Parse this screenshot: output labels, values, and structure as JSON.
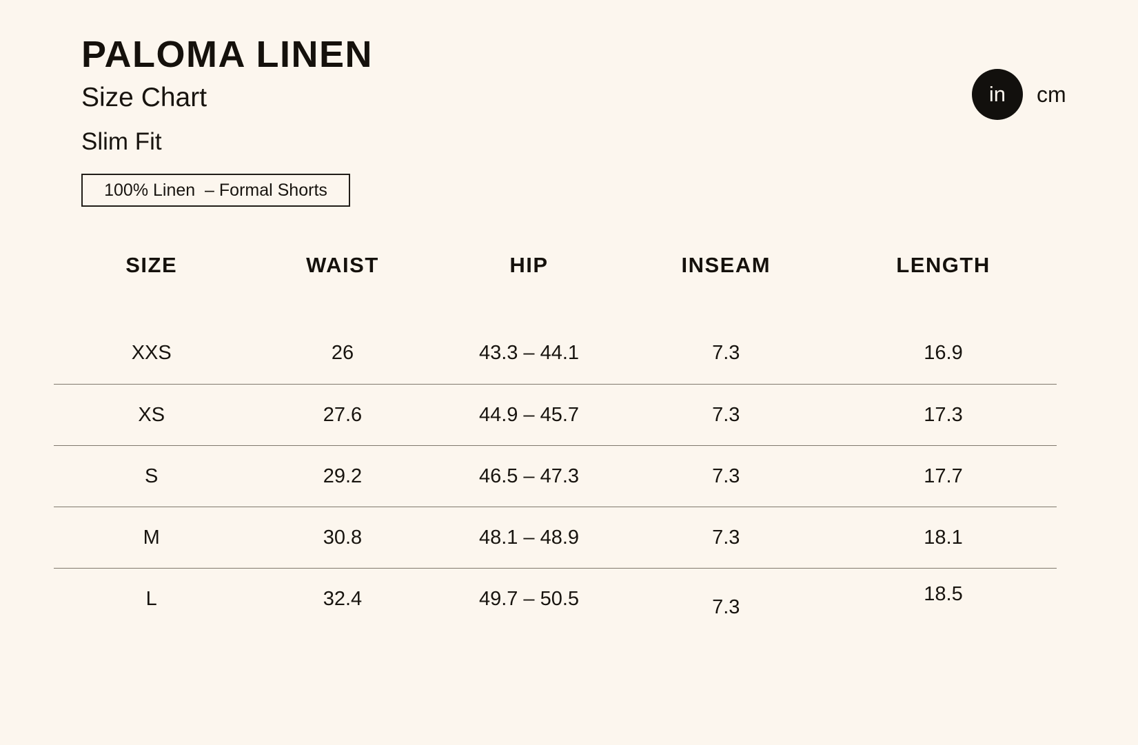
{
  "page": {
    "background": "#FCF6EE",
    "text_color": "#18140F",
    "divider_color": "#7F786C",
    "accent_black": "#12100D"
  },
  "header": {
    "title": "PALOMA LINEN",
    "subtitle": "Size Chart",
    "fit": "Slim Fit",
    "material_badge": "100% Linen  – Formal Shorts"
  },
  "unit_toggle": {
    "selected": "in",
    "options": [
      {
        "label": "in",
        "selected": true
      },
      {
        "label": "cm",
        "selected": false
      }
    ]
  },
  "table": {
    "columns": [
      "SIZE",
      "WAIST",
      "HIP",
      "INSEAM",
      "LENGTH"
    ],
    "rows": [
      {
        "size": "XXS",
        "waist": "26",
        "hip": "43.3 – 44.1",
        "inseam": "7.3",
        "length": "16.9"
      },
      {
        "size": "XS",
        "waist": "27.6",
        "hip": "44.9 – 45.7",
        "inseam": "7.3",
        "length": "17.3"
      },
      {
        "size": "S",
        "waist": "29.2",
        "hip": "46.5 – 47.3",
        "inseam": "7.3",
        "length": "17.7"
      },
      {
        "size": "M",
        "waist": "30.8",
        "hip": "48.1 – 48.9",
        "inseam": "7.3",
        "length": "18.1"
      },
      {
        "size": "L",
        "waist": "32.4",
        "hip": "49.7 – 50.5",
        "inseam": "7.3",
        "length": "18.5"
      }
    ]
  },
  "chart_data": {
    "type": "table",
    "title": "PALOMA LINEN Size Chart (Slim Fit, inches)",
    "columns": [
      "SIZE",
      "WAIST",
      "HIP",
      "INSEAM",
      "LENGTH"
    ],
    "rows": [
      [
        "XXS",
        "26",
        "43.3 – 44.1",
        "7.3",
        "16.9"
      ],
      [
        "XS",
        "27.6",
        "44.9 – 45.7",
        "7.3",
        "17.3"
      ],
      [
        "S",
        "29.2",
        "46.5 – 47.3",
        "7.3",
        "17.7"
      ],
      [
        "M",
        "30.8",
        "48.1 – 48.9",
        "7.3",
        "18.1"
      ],
      [
        "L",
        "32.4",
        "49.7 – 50.5",
        "7.3",
        "18.5"
      ]
    ]
  }
}
